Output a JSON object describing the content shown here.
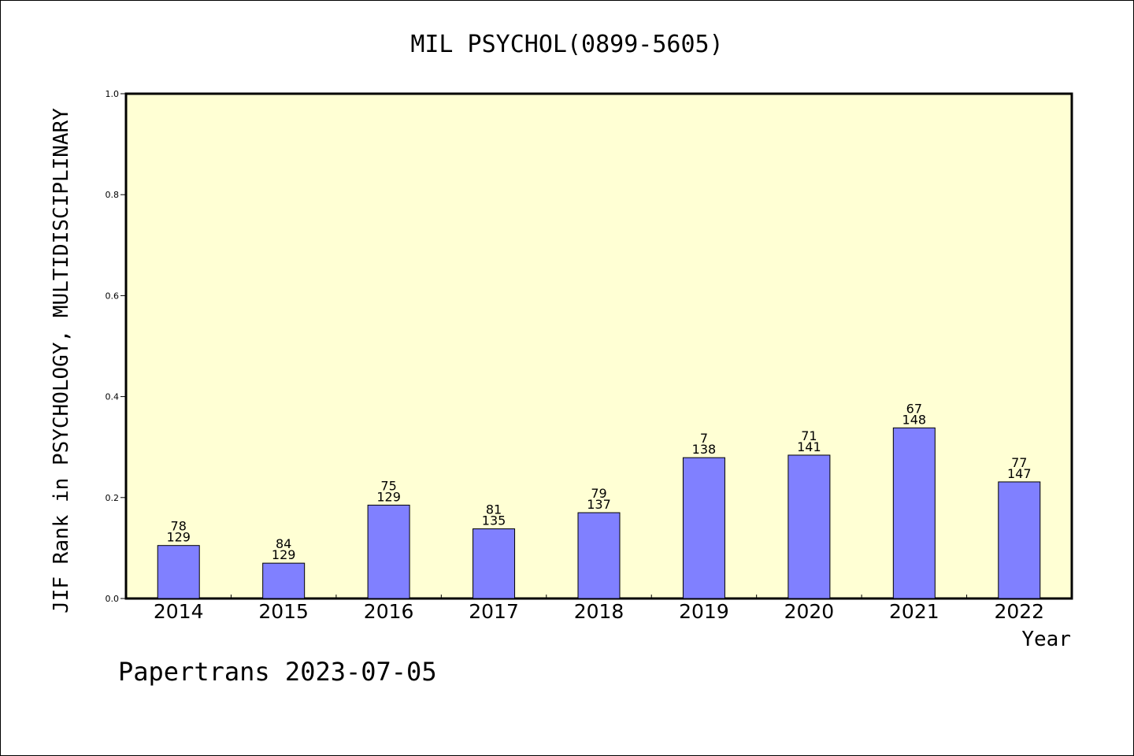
{
  "chart_data": {
    "type": "bar",
    "title": "MIL PSYCHOL(0899-5605)",
    "xlabel": "Year",
    "ylabel": "JIF Rank in PSYCHOLOGY, MULTIDISCIPLINARY",
    "ylim": [
      0,
      1.0
    ],
    "yticks": [
      "0.0",
      "0.2",
      "0.4",
      "0.6",
      "0.8",
      "1.0"
    ],
    "categories": [
      "2014",
      "2015",
      "2016",
      "2017",
      "2018",
      "2019",
      "2020",
      "2021",
      "2022"
    ],
    "values": [
      0.105,
      0.07,
      0.185,
      0.138,
      0.17,
      0.279,
      0.284,
      0.338,
      0.231
    ],
    "rank_labels": [
      "78",
      "84",
      "75",
      "81",
      "79",
      "7",
      "71",
      "67",
      "77"
    ],
    "total_labels": [
      "129",
      "129",
      "129",
      "135",
      "137",
      "138",
      "141",
      "148",
      "147"
    ],
    "grid": false,
    "colors": {
      "bar": "#8080ff",
      "plot_background": "#ffffd4",
      "axis": "#000000"
    }
  },
  "footer": "Papertrans 2023-07-05"
}
